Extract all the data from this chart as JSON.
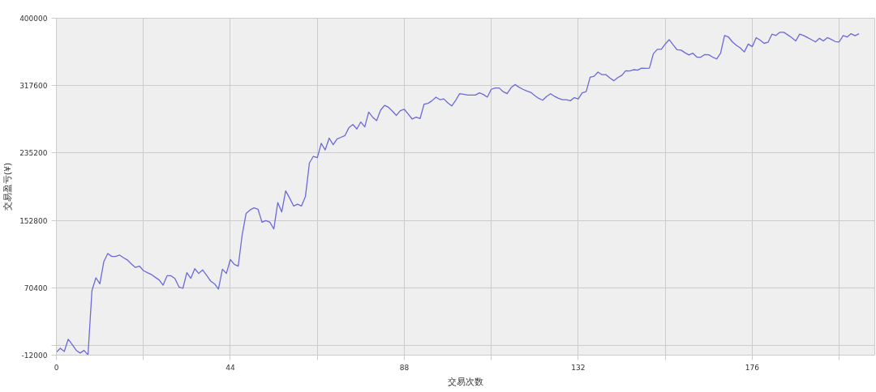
{
  "chart_data": {
    "type": "line",
    "xlabel": "交易次数",
    "ylabel": "交易盈亏(¥)",
    "x": [
      0,
      1,
      2,
      3,
      4,
      5,
      6,
      7,
      8,
      9,
      10,
      11,
      12,
      13,
      14,
      15,
      16,
      17,
      18,
      19,
      20,
      21,
      22,
      23,
      24,
      25,
      26,
      27,
      28,
      29,
      30,
      31,
      32,
      33,
      34,
      35,
      36,
      37,
      38,
      39,
      40,
      41,
      42,
      43,
      44,
      45,
      46,
      47,
      48,
      49,
      50,
      51,
      52,
      53,
      54,
      55,
      56,
      57,
      58,
      59,
      60,
      61,
      62,
      63,
      64,
      65,
      66,
      67,
      68,
      69,
      70,
      71,
      72,
      73,
      74,
      75,
      76,
      77,
      78,
      79,
      80,
      81,
      82,
      83,
      84,
      85,
      86,
      87,
      88,
      89,
      90,
      91,
      92,
      93,
      94,
      95,
      96,
      97,
      98,
      99,
      100,
      101,
      102,
      103,
      104,
      105,
      106,
      107,
      108,
      109,
      110,
      111,
      112,
      113,
      114,
      115,
      116,
      117,
      118,
      119,
      120,
      121,
      122,
      123,
      124,
      125,
      126,
      127,
      128,
      129,
      130,
      131,
      132,
      133,
      134,
      135,
      136,
      137,
      138,
      139,
      140,
      141,
      142,
      143,
      144,
      145,
      146,
      147,
      148,
      149,
      150,
      151,
      152,
      153,
      154,
      155,
      156,
      157,
      158,
      159,
      160,
      161,
      162,
      163,
      164,
      165,
      166,
      167,
      168,
      169,
      170,
      171,
      172,
      173,
      174,
      175,
      176,
      177,
      178,
      179,
      180,
      181,
      182,
      183,
      184,
      185,
      186,
      187,
      188,
      189,
      190,
      191,
      192,
      193,
      194,
      195,
      196,
      197,
      198,
      199,
      200,
      201,
      202,
      203
    ],
    "series": [
      {
        "color": "#6a6ad8",
        "values": [
          -8400,
          -3600,
          -7500,
          7500,
          1100,
          -6000,
          -9400,
          -6200,
          -11700,
          67000,
          82600,
          75200,
          102300,
          112300,
          108700,
          108700,
          110400,
          107100,
          104200,
          99400,
          95300,
          96900,
          91500,
          88900,
          86700,
          83200,
          80000,
          73600,
          85100,
          85100,
          81600,
          71400,
          69700,
          88900,
          81900,
          93700,
          87900,
          92200,
          85700,
          78700,
          75200,
          68800,
          93100,
          87900,
          104900,
          99100,
          96900,
          135300,
          161400,
          165600,
          168100,
          166500,
          150600,
          152500,
          150600,
          142300,
          174600,
          163100,
          188900,
          180000,
          170400,
          172600,
          170400,
          182200,
          223000,
          231100,
          229500,
          247000,
          239000,
          253400,
          245400,
          252400,
          254400,
          256600,
          266200,
          270000,
          264600,
          273200,
          267100,
          285300,
          279000,
          274800,
          287600,
          293400,
          291100,
          286300,
          281200,
          286900,
          288600,
          282800,
          276700,
          279000,
          277400,
          294900,
          295900,
          299100,
          303500,
          300400,
          301300,
          296500,
          292700,
          299700,
          307700,
          307100,
          306100,
          306100,
          306100,
          308700,
          306800,
          303500,
          313100,
          314700,
          314700,
          310200,
          307700,
          315000,
          318900,
          315700,
          313100,
          310900,
          309300,
          305400,
          302000,
          299700,
          304500,
          307700,
          304500,
          302000,
          300400,
          300400,
          299100,
          302900,
          301300,
          308700,
          310200,
          327900,
          329100,
          334200,
          331000,
          331000,
          326900,
          323600,
          327500,
          330100,
          335800,
          335500,
          337100,
          336500,
          339000,
          338700,
          339000,
          356600,
          362000,
          362000,
          368400,
          373800,
          367400,
          361400,
          361000,
          357800,
          355000,
          357200,
          352400,
          352400,
          355600,
          355300,
          352400,
          350200,
          357200,
          378900,
          377000,
          371000,
          366800,
          363600,
          358800,
          368400,
          365200,
          376300,
          373200,
          369300,
          370600,
          380500,
          378900,
          382800,
          382800,
          379600,
          376300,
          372200,
          380500,
          378900,
          376300,
          373800,
          371000,
          375400,
          372200,
          376300,
          374100,
          371500,
          371000,
          378900,
          377000,
          381100,
          378600,
          381100
        ]
      }
    ],
    "xlim": [
      0,
      207
    ],
    "ylim": [
      -12000,
      400000
    ],
    "xticks": [
      0,
      {
        "value": 22,
        "label": null
      },
      44,
      {
        "value": 66,
        "label": null
      },
      88,
      {
        "value": 110,
        "label": null
      },
      132,
      {
        "value": 154,
        "label": null
      },
      176,
      {
        "value": 198,
        "label": null
      }
    ],
    "yticks": [
      -12000,
      {
        "value": 0,
        "label": null
      },
      70400,
      152800,
      235200,
      317600,
      400000
    ],
    "grid": true
  }
}
